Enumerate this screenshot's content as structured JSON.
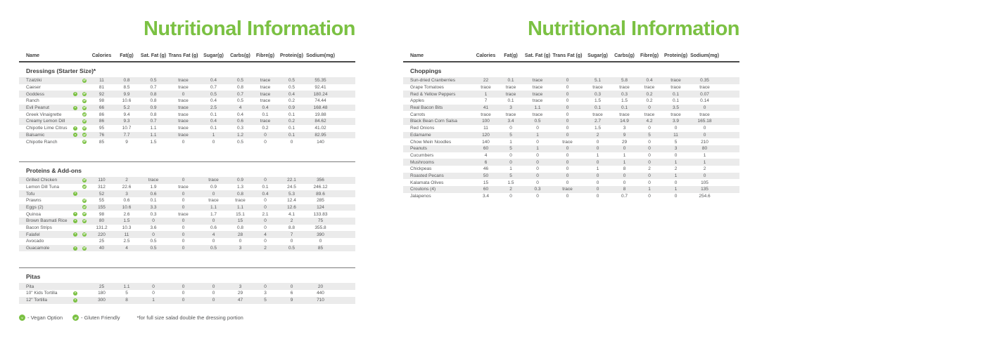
{
  "colors": {
    "brand_green": "#7bc143",
    "stripe": "#ebebeb",
    "header_rule": "#4a4a4a",
    "divider": "#7a7a7a",
    "heading_text": "#3d3d3d",
    "body_text": "#555657"
  },
  "columns": [
    "Name",
    "Calories",
    "Fat(g)",
    "Sat. Fat (g)",
    "Trans Fat (g)",
    "Sugar(g)",
    "Carbs(g)",
    "Fibre(g)",
    "Protein(g)",
    "Sodium(mg)"
  ],
  "legend": {
    "vegan_icon": "v",
    "vegan_label": "- Vegan Option",
    "gluten_icon": "gf",
    "gluten_label": "- Gluten Friendly",
    "footnote": "*for full size salad double the dressing portion"
  },
  "panels": [
    {
      "title": "Nutritional Information",
      "sections": [
        {
          "name": "Dressings (Starter Size)*",
          "rows": [
            {
              "name": "Tzatziki",
              "icons": [
                "gf"
              ],
              "values": [
                "11",
                "0.8",
                "0.5",
                "trace",
                "0.4",
                "0.5",
                "trace",
                "0.5",
                "55.35"
              ]
            },
            {
              "name": "Caeser",
              "icons": [],
              "values": [
                "81",
                "8.5",
                "0.7",
                "trace",
                "0.7",
                "0.8",
                "trace",
                "0.5",
                "92.41"
              ]
            },
            {
              "name": "Goddess",
              "icons": [
                "v",
                "gf"
              ],
              "values": [
                "92",
                "9.9",
                "0.8",
                "0",
                "0.5",
                "0.7",
                "trace",
                "0.4",
                "180.24"
              ]
            },
            {
              "name": "Ranch",
              "icons": [
                "gf"
              ],
              "values": [
                "98",
                "10.6",
                "0.8",
                "trace",
                "0.4",
                "0.5",
                "trace",
                "0.2",
                "74.44"
              ]
            },
            {
              "name": "Evil Peanut",
              "icons": [
                "v",
                "gf"
              ],
              "values": [
                "66",
                "5.2",
                "0.9",
                "trace",
                "2.5",
                "4",
                "0.4",
                "0.9",
                "168.48"
              ]
            },
            {
              "name": "Greek Vinaigrette",
              "icons": [
                "gf"
              ],
              "values": [
                "86",
                "9.4",
                "0.8",
                "trace",
                "0.1",
                "0.4",
                "0.1",
                "0.1",
                "19.88"
              ]
            },
            {
              "name": "Creamy Lemon Dill",
              "icons": [
                "gf"
              ],
              "values": [
                "86",
                "9.3",
                "0.7",
                "trace",
                "0.4",
                "0.6",
                "trace",
                "0.2",
                "84.62"
              ]
            },
            {
              "name": "Chipotle Lime Citrus",
              "icons": [
                "v",
                "gf"
              ],
              "values": [
                "95",
                "10.7",
                "1.1",
                "trace",
                "0.1",
                "0.3",
                "0.2",
                "0.1",
                "41.02"
              ]
            },
            {
              "name": "Balsamic",
              "icons": [
                "v",
                "gf"
              ],
              "values": [
                "76",
                "7.7",
                "1.1",
                "trace",
                "1",
                "1.2",
                "0",
                "0.1",
                "82.95"
              ]
            },
            {
              "name": "Chipotle Ranch",
              "icons": [
                "gf"
              ],
              "values": [
                "85",
                "9",
                "1.5",
                "0",
                "0",
                "0.5",
                "0",
                "0",
                "140"
              ]
            }
          ]
        },
        {
          "name": "Proteins & Add-ons",
          "rows": [
            {
              "name": "Grilled Chicken",
              "icons": [
                "gf"
              ],
              "values": [
                "110",
                "2",
                "trace",
                "0",
                "trace",
                "0.9",
                "0",
                "22.1",
                "356"
              ]
            },
            {
              "name": "Lemon Dill Tuna",
              "icons": [
                "gf"
              ],
              "values": [
                "312",
                "22.6",
                "1.9",
                "trace",
                "0.9",
                "1.3",
                "0.1",
                "24.5",
                "246.12"
              ]
            },
            {
              "name": "Tofu",
              "icons": [
                "v"
              ],
              "values": [
                "52",
                "3",
                "0.6",
                "0",
                "0",
                "0.8",
                "0.4",
                "5.3",
                "89.6"
              ]
            },
            {
              "name": "Prawns",
              "icons": [
                "gf"
              ],
              "values": [
                "55",
                "0.6",
                "0.1",
                "0",
                "trace",
                "trace",
                "0",
                "12.4",
                "285"
              ]
            },
            {
              "name": "Eggs (2)",
              "icons": [
                "gf"
              ],
              "values": [
                "155",
                "10.6",
                "3.3",
                "0",
                "1.1",
                "1.1",
                "0",
                "12.6",
                "124"
              ]
            },
            {
              "name": "Quinoa",
              "icons": [
                "v",
                "gf"
              ],
              "values": [
                "98",
                "2.6",
                "0.3",
                "trace",
                "1.7",
                "15.1",
                "2.1",
                "4.1",
                "133.83"
              ]
            },
            {
              "name": "Brown Basmati Rice",
              "icons": [
                "v",
                "gf"
              ],
              "values": [
                "80",
                "1.5",
                "0",
                "0",
                "0",
                "15",
                "0",
                "2",
                "75"
              ]
            },
            {
              "name": "Bacon Strips",
              "icons": [],
              "values": [
                "131.2",
                "10.3",
                "3.6",
                "0",
                "0.6",
                "0.8",
                "0",
                "8.8",
                "355.8"
              ]
            },
            {
              "name": "Falafel",
              "icons": [
                "v",
                "gf"
              ],
              "values": [
                "220",
                "11",
                "0",
                "0",
                "4",
                "28",
                "4",
                "7",
                "390"
              ]
            },
            {
              "name": "Avocado",
              "icons": [],
              "values": [
                "25",
                "2.5",
                "0.5",
                "0",
                "0",
                "0",
                "0",
                "0",
                "0"
              ]
            },
            {
              "name": "Guacamole",
              "icons": [
                "v",
                "gf"
              ],
              "values": [
                "40",
                "4",
                "0.5",
                "0",
                "0.5",
                "3",
                "2",
                "0.5",
                "85"
              ]
            }
          ]
        },
        {
          "name": "Pitas",
          "rows": [
            {
              "name": "Pita",
              "icons": [],
              "values": [
                "25",
                "1.1",
                "0",
                "0",
                "0",
                "3",
                "0",
                "0",
                "20"
              ]
            },
            {
              "name": "10\" Kids Tortilla",
              "icons": [
                "v"
              ],
              "values": [
                "180",
                "5",
                "0",
                "0",
                "0",
                "29",
                "3",
                "6",
                "440"
              ]
            },
            {
              "name": "12\" Tortilla",
              "icons": [
                "v"
              ],
              "values": [
                "300",
                "8",
                "1",
                "0",
                "0",
                "47",
                "5",
                "9",
                "710"
              ]
            }
          ]
        }
      ]
    },
    {
      "title": "Nutritional Information",
      "sections": [
        {
          "name": "Choppings",
          "rows": [
            {
              "name": "Sun-dried Cranberries",
              "icons": [],
              "values": [
                "22",
                "0.1",
                "trace",
                "0",
                "5.1",
                "5.8",
                "0.4",
                "trace",
                "0.35"
              ]
            },
            {
              "name": "Grape Tomatoes",
              "icons": [],
              "values": [
                "trace",
                "trace",
                "trace",
                "0",
                "trace",
                "trace",
                "trace",
                "trace",
                "trace"
              ]
            },
            {
              "name": "Red & Yellow Peppers",
              "icons": [],
              "values": [
                "1",
                "trace",
                "trace",
                "0",
                "0.3",
                "0.3",
                "0.2",
                "0.1",
                "0.07"
              ]
            },
            {
              "name": "Apples",
              "icons": [],
              "values": [
                "7",
                "0.1",
                "trace",
                "0",
                "1.5",
                "1.5",
                "0.2",
                "0.1",
                "0.14"
              ]
            },
            {
              "name": "Real Bacon Bits",
              "icons": [],
              "values": [
                "41",
                "3",
                "1.1",
                "0",
                "0.1",
                "0.1",
                "0",
                "3.5",
                "0"
              ]
            },
            {
              "name": "Carrots",
              "icons": [],
              "values": [
                "trace",
                "trace",
                "trace",
                "0",
                "trace",
                "trace",
                "trace",
                "trace",
                "trace"
              ]
            },
            {
              "name": "Black Bean Corn Salsa",
              "icons": [],
              "values": [
                "100",
                "3.4",
                "0.5",
                "0",
                "2.7",
                "14.9",
                "4.2",
                "3.9",
                "165.18"
              ]
            },
            {
              "name": "Red Onions",
              "icons": [],
              "values": [
                "11",
                "0",
                "0",
                "0",
                "1.5",
                "3",
                "0",
                "0",
                "0"
              ]
            },
            {
              "name": "Edamame",
              "icons": [],
              "values": [
                "120",
                "5",
                "1",
                "0",
                "2",
                "9",
                "5",
                "11",
                "0"
              ]
            },
            {
              "name": "Chow Mein Noodles",
              "icons": [],
              "values": [
                "140",
                "1",
                "0",
                "trace",
                "0",
                "29",
                "0",
                "5",
                "210"
              ]
            },
            {
              "name": "Peanuts",
              "icons": [],
              "values": [
                "60",
                "5",
                "1",
                "0",
                "0",
                "0",
                "0",
                "3",
                "80"
              ]
            },
            {
              "name": "Cucumbers",
              "icons": [],
              "values": [
                "4",
                "0",
                "0",
                "0",
                "1",
                "1",
                "0",
                "0",
                "1"
              ]
            },
            {
              "name": "Mushrooms",
              "icons": [],
              "values": [
                "6",
                "0",
                "0",
                "0",
                "0",
                "1",
                "0",
                "1",
                "1"
              ]
            },
            {
              "name": "Chickpeas",
              "icons": [],
              "values": [
                "46",
                "1",
                "0",
                "0",
                "1",
                "8",
                "2",
                "2",
                "2"
              ]
            },
            {
              "name": "Roasted Pecans",
              "icons": [],
              "values": [
                "50",
                "5",
                "0",
                "0",
                "0",
                "0",
                "0",
                "1",
                "0"
              ]
            },
            {
              "name": "Kalamata Olives",
              "icons": [],
              "values": [
                "15",
                "1.5",
                "0",
                "0",
                "0",
                "0",
                "0",
                "0",
                "105"
              ]
            },
            {
              "name": "Croutons (4)",
              "icons": [],
              "values": [
                "60",
                "2",
                "0.3",
                "trace",
                "0",
                "8",
                "1",
                "1",
                "135"
              ]
            },
            {
              "name": "Jalapenos",
              "icons": [],
              "values": [
                "3.4",
                "0",
                "0",
                "0",
                "0",
                "0.7",
                "0",
                "0",
                "254.6"
              ]
            }
          ]
        }
      ]
    }
  ]
}
